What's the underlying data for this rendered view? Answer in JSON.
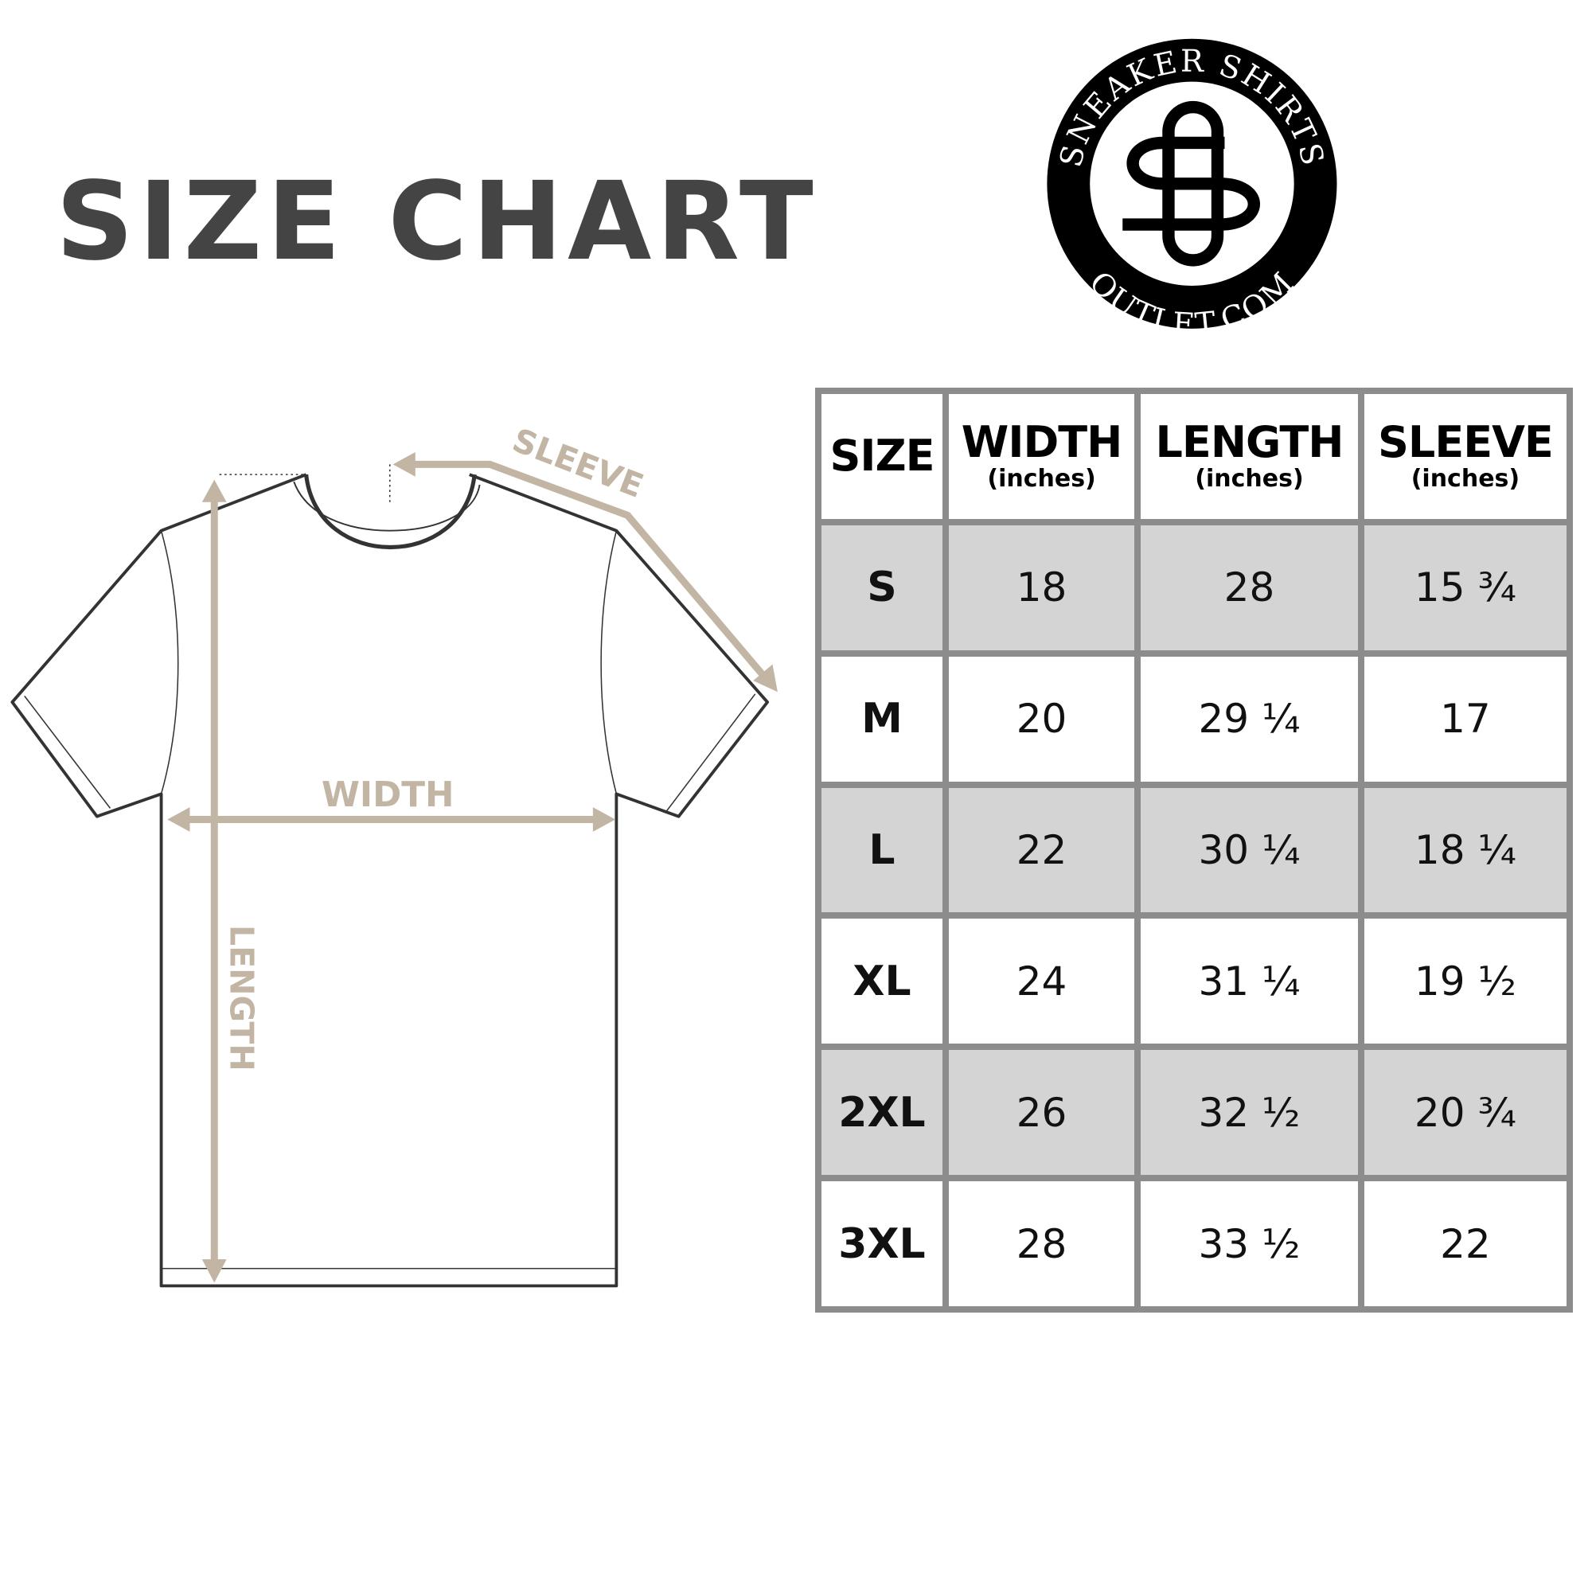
{
  "title": "SIZE CHART",
  "logo": {
    "top_text": "SNEAKER SHIRTS",
    "bottom_text": "OUTLET.COM",
    "monogram": "SO"
  },
  "diagram": {
    "labels": {
      "sleeve": "SLEEVE",
      "width": "WIDTH",
      "length": "LENGTH"
    },
    "arrow_color": "#c2b5a3"
  },
  "table": {
    "headers": [
      {
        "main": "SIZE",
        "sub": ""
      },
      {
        "main": "WIDTH",
        "sub": "(inches)"
      },
      {
        "main": "LENGTH",
        "sub": "(inches)"
      },
      {
        "main": "SLEEVE",
        "sub": "(inches)"
      }
    ],
    "rows": [
      [
        "S",
        "18",
        "28",
        "15 ¾"
      ],
      [
        "M",
        "20",
        "29 ¼",
        "17"
      ],
      [
        "L",
        "22",
        "30 ¼",
        "18 ¼"
      ],
      [
        "XL",
        "24",
        "31 ¼",
        "19 ½"
      ],
      [
        "2XL",
        "26",
        "32 ½",
        "20 ¾"
      ],
      [
        "3XL",
        "28",
        "33 ½",
        "22"
      ]
    ],
    "shade_color": "#d4d4d4",
    "border_color": "#8c8c8c"
  }
}
